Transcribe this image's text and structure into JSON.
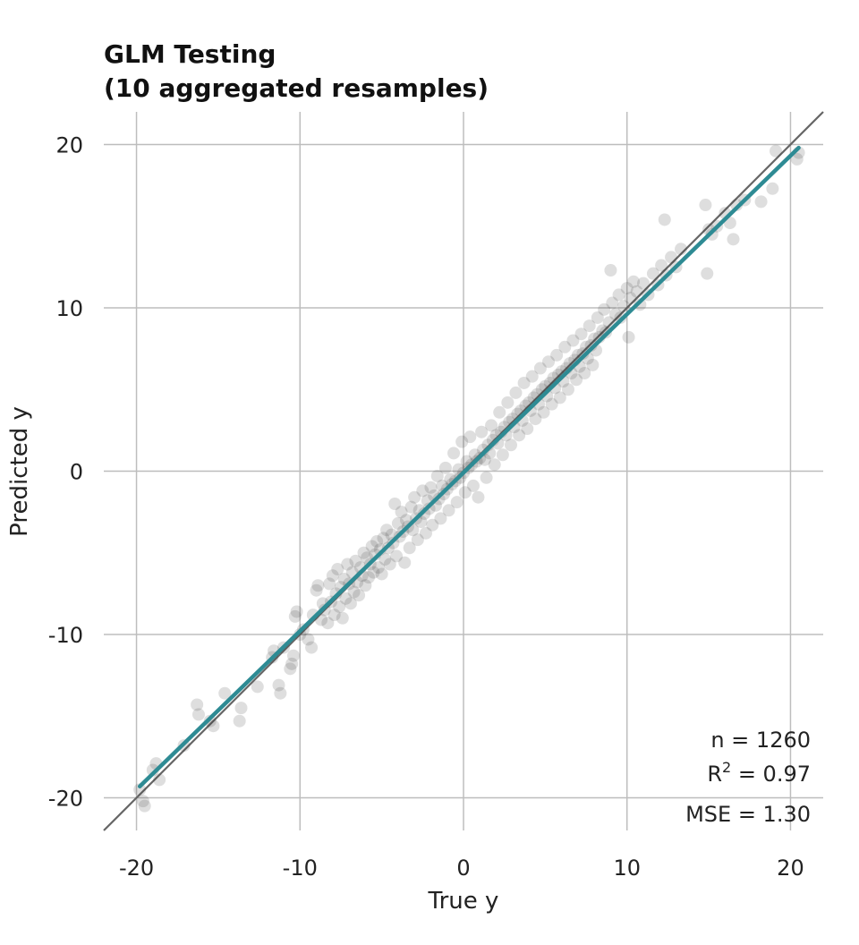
{
  "chart_data": {
    "type": "scatter",
    "title_line1": "GLM Testing",
    "title_line2": "(10 aggregated resamples)",
    "xlabel": "True y",
    "ylabel": "Predicted y",
    "xlim": [
      -22,
      22
    ],
    "ylim": [
      -22,
      22
    ],
    "x_ticks": [
      -20,
      -10,
      0,
      10,
      20
    ],
    "y_ticks": [
      -20,
      -10,
      0,
      10,
      20
    ],
    "x_tick_labels": [
      "-20",
      "-10",
      "0",
      "10",
      "20"
    ],
    "y_tick_labels": [
      "-20",
      "-10",
      "0",
      "10",
      "20"
    ],
    "grid": true,
    "point_color": "#333333",
    "identity_line_color": "#666666",
    "fit_line_color": "#2e8b94",
    "fit_line": {
      "x": [
        -19.8,
        20.5
      ],
      "y": [
        -19.3,
        19.8
      ]
    },
    "stats": {
      "n_text": "n = 1260",
      "r2_prefix": "R",
      "r2_sup": "2",
      "r2_suffix": " = 0.97",
      "mse_text": "MSE = 1.30"
    },
    "points": [
      [
        -19.8,
        -19.5
      ],
      [
        -19.6,
        -20.2
      ],
      [
        -19.5,
        -20.5
      ],
      [
        -19.0,
        -18.3
      ],
      [
        -18.8,
        -17.9
      ],
      [
        -18.6,
        -18.9
      ],
      [
        -17.1,
        -16.8
      ],
      [
        -16.3,
        -14.3
      ],
      [
        -16.2,
        -14.9
      ],
      [
        -15.5,
        -15.3
      ],
      [
        -15.3,
        -15.6
      ],
      [
        -14.6,
        -13.6
      ],
      [
        -13.7,
        -15.3
      ],
      [
        -13.6,
        -14.5
      ],
      [
        -12.6,
        -13.2
      ],
      [
        -11.7,
        -11.4
      ],
      [
        -11.6,
        -11.0
      ],
      [
        -11.3,
        -13.1
      ],
      [
        -11.2,
        -13.6
      ],
      [
        -11.0,
        -10.8
      ],
      [
        -10.6,
        -12.1
      ],
      [
        -10.5,
        -11.8
      ],
      [
        -10.4,
        -11.3
      ],
      [
        -10.3,
        -8.9
      ],
      [
        -10.2,
        -8.6
      ],
      [
        -10.0,
        -10.0
      ],
      [
        -9.8,
        -9.7
      ],
      [
        -9.5,
        -10.3
      ],
      [
        -9.3,
        -10.8
      ],
      [
        -9.2,
        -8.8
      ],
      [
        -9.0,
        -7.3
      ],
      [
        -8.9,
        -7.0
      ],
      [
        -8.7,
        -9.1
      ],
      [
        -8.6,
        -8.1
      ],
      [
        -8.5,
        -8.5
      ],
      [
        -8.3,
        -9.3
      ],
      [
        -8.2,
        -6.9
      ],
      [
        -8.1,
        -8.0
      ],
      [
        -8.0,
        -6.4
      ],
      [
        -7.9,
        -8.8
      ],
      [
        -7.8,
        -7.5
      ],
      [
        -7.7,
        -6.0
      ],
      [
        -7.6,
        -8.3
      ],
      [
        -7.5,
        -7.1
      ],
      [
        -7.4,
        -9.0
      ],
      [
        -7.3,
        -6.6
      ],
      [
        -7.2,
        -7.8
      ],
      [
        -7.1,
        -5.7
      ],
      [
        -7.0,
        -6.9
      ],
      [
        -6.9,
        -8.1
      ],
      [
        -6.8,
        -6.2
      ],
      [
        -6.7,
        -7.4
      ],
      [
        -6.6,
        -5.5
      ],
      [
        -6.5,
        -6.8
      ],
      [
        -6.4,
        -7.6
      ],
      [
        -6.3,
        -5.9
      ],
      [
        -6.2,
        -6.4
      ],
      [
        -6.1,
        -5.0
      ],
      [
        -6.0,
        -7.0
      ],
      [
        -5.9,
        -5.3
      ],
      [
        -5.8,
        -6.5
      ],
      [
        -5.7,
        -5.7
      ],
      [
        -5.6,
        -4.6
      ],
      [
        -5.5,
        -6.2
      ],
      [
        -5.4,
        -5.1
      ],
      [
        -5.3,
        -4.3
      ],
      [
        -5.2,
        -5.9
      ],
      [
        -5.1,
        -4.8
      ],
      [
        -5.0,
        -6.3
      ],
      [
        -4.9,
        -4.1
      ],
      [
        -4.8,
        -5.4
      ],
      [
        -4.7,
        -3.6
      ],
      [
        -4.6,
        -4.7
      ],
      [
        -4.5,
        -5.7
      ],
      [
        -4.4,
        -3.9
      ],
      [
        -4.3,
        -4.4
      ],
      [
        -4.2,
        -2.0
      ],
      [
        -4.1,
        -5.2
      ],
      [
        -4.0,
        -3.2
      ],
      [
        -3.9,
        -4.0
      ],
      [
        -3.8,
        -2.5
      ],
      [
        -3.7,
        -3.7
      ],
      [
        -3.6,
        -5.6
      ],
      [
        -3.5,
        -3.0
      ],
      [
        -3.4,
        -3.4
      ],
      [
        -3.3,
        -4.7
      ],
      [
        -3.2,
        -2.2
      ],
      [
        -3.1,
        -3.6
      ],
      [
        -3.0,
        -1.6
      ],
      [
        -2.9,
        -2.9
      ],
      [
        -2.8,
        -4.2
      ],
      [
        -2.7,
        -2.4
      ],
      [
        -2.6,
        -3.1
      ],
      [
        -2.5,
        -1.2
      ],
      [
        -2.4,
        -2.6
      ],
      [
        -2.3,
        -3.8
      ],
      [
        -2.2,
        -1.8
      ],
      [
        -2.1,
        -2.3
      ],
      [
        -2.0,
        -1.0
      ],
      [
        -1.9,
        -3.3
      ],
      [
        -1.8,
        -1.5
      ],
      [
        -1.7,
        -2.1
      ],
      [
        -1.6,
        -0.3
      ],
      [
        -1.5,
        -1.7
      ],
      [
        -1.4,
        -2.9
      ],
      [
        -1.3,
        -0.9
      ],
      [
        -1.2,
        -1.4
      ],
      [
        -1.1,
        0.2
      ],
      [
        -1.0,
        -1.1
      ],
      [
        -0.9,
        -2.4
      ],
      [
        -0.8,
        -0.5
      ],
      [
        -0.7,
        -0.8
      ],
      [
        -0.6,
        1.1
      ],
      [
        -0.5,
        -0.6
      ],
      [
        -0.4,
        -1.9
      ],
      [
        -0.3,
        0.1
      ],
      [
        -0.2,
        -0.4
      ],
      [
        -0.1,
        1.8
      ],
      [
        0.0,
        -0.1
      ],
      [
        0.1,
        -1.3
      ],
      [
        0.2,
        0.6
      ],
      [
        0.3,
        0.2
      ],
      [
        0.4,
        2.1
      ],
      [
        0.5,
        0.4
      ],
      [
        0.6,
        -0.9
      ],
      [
        0.7,
        1.0
      ],
      [
        0.8,
        0.6
      ],
      [
        0.9,
        -1.6
      ],
      [
        1.0,
        0.8
      ],
      [
        1.1,
        2.4
      ],
      [
        1.2,
        1.3
      ],
      [
        1.3,
        0.7
      ],
      [
        1.4,
        -0.4
      ],
      [
        1.5,
        1.6
      ],
      [
        1.6,
        1.1
      ],
      [
        1.7,
        2.8
      ],
      [
        1.8,
        1.9
      ],
      [
        1.9,
        0.4
      ],
      [
        2.0,
        2.2
      ],
      [
        2.1,
        1.7
      ],
      [
        2.2,
        3.6
      ],
      [
        2.3,
        2.4
      ],
      [
        2.4,
        1.0
      ],
      [
        2.5,
        2.7
      ],
      [
        2.6,
        2.2
      ],
      [
        2.7,
        4.2
      ],
      [
        2.8,
        3.0
      ],
      [
        2.9,
        1.6
      ],
      [
        3.0,
        3.2
      ],
      [
        3.1,
        2.7
      ],
      [
        3.2,
        4.8
      ],
      [
        3.3,
        3.5
      ],
      [
        3.4,
        2.2
      ],
      [
        3.5,
        3.7
      ],
      [
        3.6,
        3.1
      ],
      [
        3.7,
        5.4
      ],
      [
        3.8,
        4.0
      ],
      [
        3.9,
        2.6
      ],
      [
        4.0,
        4.2
      ],
      [
        4.1,
        3.7
      ],
      [
        4.2,
        5.8
      ],
      [
        4.3,
        4.5
      ],
      [
        4.4,
        3.2
      ],
      [
        4.5,
        4.7
      ],
      [
        4.6,
        4.1
      ],
      [
        4.7,
        6.3
      ],
      [
        4.8,
        5.0
      ],
      [
        4.9,
        3.6
      ],
      [
        5.0,
        5.2
      ],
      [
        5.1,
        4.6
      ],
      [
        5.2,
        6.7
      ],
      [
        5.3,
        5.4
      ],
      [
        5.4,
        4.1
      ],
      [
        5.5,
        5.7
      ],
      [
        5.6,
        5.1
      ],
      [
        5.7,
        7.1
      ],
      [
        5.8,
        5.9
      ],
      [
        5.9,
        4.5
      ],
      [
        6.0,
        6.1
      ],
      [
        6.1,
        5.5
      ],
      [
        6.2,
        7.6
      ],
      [
        6.3,
        6.3
      ],
      [
        6.4,
        5.0
      ],
      [
        6.5,
        6.6
      ],
      [
        6.6,
        6.0
      ],
      [
        6.7,
        8.0
      ],
      [
        6.8,
        6.8
      ],
      [
        6.9,
        5.6
      ],
      [
        7.0,
        7.1
      ],
      [
        7.1,
        6.4
      ],
      [
        7.2,
        8.4
      ],
      [
        7.3,
        7.2
      ],
      [
        7.4,
        6.0
      ],
      [
        7.5,
        7.6
      ],
      [
        7.6,
        6.9
      ],
      [
        7.7,
        8.9
      ],
      [
        7.8,
        7.7
      ],
      [
        7.9,
        6.5
      ],
      [
        8.0,
        8.1
      ],
      [
        8.1,
        7.4
      ],
      [
        8.2,
        9.4
      ],
      [
        8.3,
        8.2
      ],
      [
        8.5,
        8.6
      ],
      [
        8.6,
        9.9
      ],
      [
        8.7,
        8.5
      ],
      [
        8.9,
        9.1
      ],
      [
        9.0,
        12.3
      ],
      [
        9.1,
        10.3
      ],
      [
        9.3,
        9.6
      ],
      [
        9.5,
        10.8
      ],
      [
        9.6,
        9.4
      ],
      [
        9.8,
        10.1
      ],
      [
        10.0,
        11.2
      ],
      [
        10.1,
        8.2
      ],
      [
        10.2,
        10.6
      ],
      [
        10.4,
        11.6
      ],
      [
        10.6,
        11.0
      ],
      [
        10.8,
        10.2
      ],
      [
        11.0,
        11.5
      ],
      [
        11.3,
        10.8
      ],
      [
        11.6,
        12.1
      ],
      [
        11.9,
        11.4
      ],
      [
        12.1,
        12.6
      ],
      [
        12.3,
        15.4
      ],
      [
        12.4,
        12.0
      ],
      [
        12.7,
        13.1
      ],
      [
        13.0,
        12.5
      ],
      [
        13.3,
        13.6
      ],
      [
        14.8,
        16.3
      ],
      [
        14.9,
        12.1
      ],
      [
        15.0,
        14.8
      ],
      [
        15.2,
        14.5
      ],
      [
        15.5,
        15.0
      ],
      [
        16.0,
        15.8
      ],
      [
        16.3,
        15.2
      ],
      [
        16.5,
        14.2
      ],
      [
        16.7,
        16.3
      ],
      [
        17.2,
        16.6
      ],
      [
        18.2,
        16.5
      ],
      [
        18.9,
        17.3
      ],
      [
        19.1,
        19.6
      ],
      [
        20.4,
        19.1
      ],
      [
        20.5,
        19.5
      ]
    ]
  }
}
